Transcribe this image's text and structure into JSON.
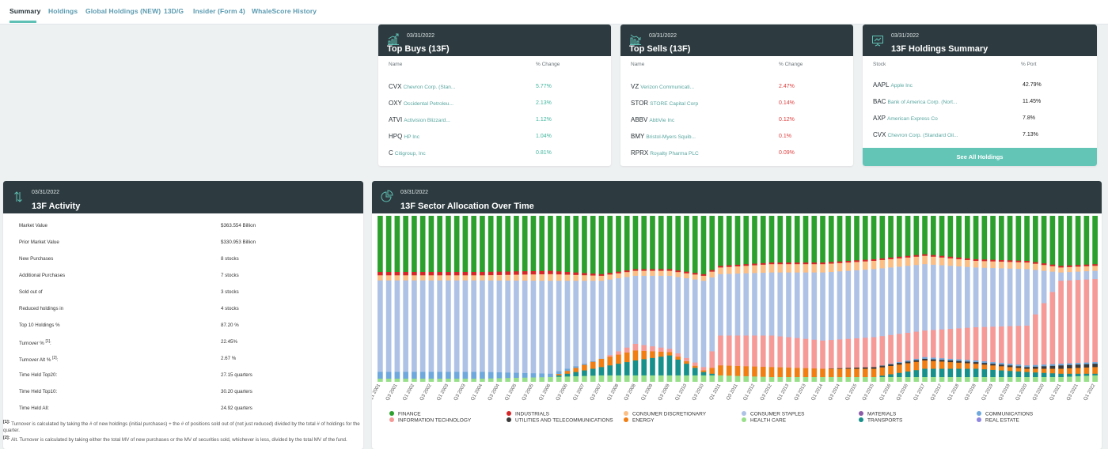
{
  "tabs": [
    "Summary",
    "Holdings",
    "Global Holdings (NEW)",
    "13D/G",
    "Insider (Form 4)",
    "WhaleScore History"
  ],
  "top_buys": {
    "date": "03/31/2022",
    "title": "Top Buys (13F)",
    "col_name": "Name",
    "col_pct": "% Change",
    "rows": [
      {
        "sym": "CVX",
        "name": "Chevron Corp. (Stan...",
        "pct": "5.77%"
      },
      {
        "sym": "OXY",
        "name": "Occidental Petroleu...",
        "pct": "2.13%"
      },
      {
        "sym": "ATVI",
        "name": "Activision Blizzard...",
        "pct": "1.12%"
      },
      {
        "sym": "HPQ",
        "name": "HP Inc",
        "pct": "1.04%"
      },
      {
        "sym": "C",
        "name": "Citigroup, Inc",
        "pct": "0.81%"
      }
    ]
  },
  "top_sells": {
    "date": "03/31/2022",
    "title": "Top Sells (13F)",
    "col_name": "Name",
    "col_pct": "% Change",
    "rows": [
      {
        "sym": "VZ",
        "name": "Verizon Communicati...",
        "pct": "2.47%"
      },
      {
        "sym": "STOR",
        "name": "STORE Capital Corp",
        "pct": "0.14%"
      },
      {
        "sym": "ABBV",
        "name": "AbbVie Inc",
        "pct": "0.12%"
      },
      {
        "sym": "BMY",
        "name": "Bristol-Myers Squib...",
        "pct": "0.1%"
      },
      {
        "sym": "RPRX",
        "name": "Royalty Pharma PLC",
        "pct": "0.09%"
      }
    ]
  },
  "holdings_summary": {
    "date": "03/31/2022",
    "title": "13F Holdings Summary",
    "col_name": "Stock",
    "col_pct": "% Port",
    "rows": [
      {
        "sym": "AAPL",
        "name": "Apple Inc",
        "pct": "42.79%"
      },
      {
        "sym": "BAC",
        "name": "Bank of America Corp. (Nort...",
        "pct": "11.45%"
      },
      {
        "sym": "AXP",
        "name": "American Express Co",
        "pct": "7.8%"
      },
      {
        "sym": "CVX",
        "name": "Chevron Corp. (Standard Oil...",
        "pct": "7.13%"
      }
    ],
    "see_all": "See All Holdings"
  },
  "activity": {
    "date": "03/31/2022",
    "title": "13F Activity",
    "rows": [
      {
        "label": "Market Value",
        "value": "$363.554 Billion"
      },
      {
        "label": "Prior Market Value",
        "value": "$330.953 Billion"
      },
      {
        "label": "New Purchases",
        "value": "8 stocks"
      },
      {
        "label": "Additional Purchases",
        "value": "7 stocks"
      },
      {
        "label": "Sold out of",
        "value": "3 stocks"
      },
      {
        "label": "Reduced holdings in",
        "value": "4 stocks"
      },
      {
        "label": "Top 10 Holdings %",
        "value": "87.20 %"
      },
      {
        "label": "Turnover %",
        "sup": "[1]",
        "suffix": ":",
        "value": "22.45%"
      },
      {
        "label": "Turnover Alt %",
        "sup": "[2]",
        "suffix": ":",
        "value": "2.67 %"
      },
      {
        "label": "Time Held Top20:",
        "value": "27.15 quarters"
      },
      {
        "label": "Time Held Top10:",
        "value": "30.20 quarters"
      },
      {
        "label": "Time Held All:",
        "value": "24.92 quarters"
      }
    ],
    "footnote1_mark": "[1]:",
    "footnote1": "Turnover is calculated by taking the # of new holdings (initial purchases) + the # of positions sold out of (not just reduced) divided by the total # of holdings for the quarter.",
    "footnote2_mark": "[2]:",
    "footnote2": "Alt. Turnover is calculated by taking either the total MV of new purchases or the MV of securities sold, whichever is less, divided by the total MV of the fund."
  },
  "sector": {
    "date": "03/31/2022",
    "title": "13F Sector Allocation Over Time"
  },
  "chart_data": {
    "type": "bar",
    "stacked": true,
    "normalized_percent": true,
    "categories": [
      "Q1 2001",
      "Q2 2001",
      "Q3 2001",
      "Q4 2001",
      "Q1 2002",
      "Q2 2002",
      "Q3 2002",
      "Q4 2002",
      "Q1 2003",
      "Q2 2003",
      "Q3 2003",
      "Q4 2003",
      "Q1 2004",
      "Q2 2004",
      "Q3 2004",
      "Q4 2004",
      "Q1 2005",
      "Q2 2005",
      "Q3 2005",
      "Q4 2005",
      "Q1 2006",
      "Q2 2006",
      "Q3 2006",
      "Q4 2006",
      "Q1 2007",
      "Q2 2007",
      "Q3 2007",
      "Q4 2007",
      "Q1 2008",
      "Q2 2008",
      "Q3 2008",
      "Q4 2008",
      "Q1 2009",
      "Q2 2009",
      "Q3 2009",
      "Q4 2009",
      "Q1 2010",
      "Q2 2010",
      "Q3 2010",
      "Q4 2010",
      "Q1 2011",
      "Q2 2011",
      "Q3 2011",
      "Q4 2011",
      "Q1 2012",
      "Q2 2012",
      "Q3 2012",
      "Q4 2012",
      "Q1 2013",
      "Q2 2013",
      "Q3 2013",
      "Q4 2013",
      "Q1 2014",
      "Q2 2014",
      "Q3 2014",
      "Q4 2014",
      "Q1 2015",
      "Q2 2015",
      "Q3 2015",
      "Q4 2015",
      "Q1 2016",
      "Q2 2016",
      "Q3 2016",
      "Q4 2016",
      "Q1 2017",
      "Q2 2017",
      "Q3 2017",
      "Q4 2017",
      "Q1 2018",
      "Q2 2018",
      "Q3 2018",
      "Q4 2018",
      "Q1 2019",
      "Q2 2019",
      "Q3 2019",
      "Q4 2019",
      "Q1 2020",
      "Q2 2020",
      "Q3 2020",
      "Q4 2020",
      "Q1 2021",
      "Q2 2021",
      "Q3 2021",
      "Q4 2021",
      "Q1 2022"
    ],
    "x_tick_labels": [
      "Q1 2001",
      "Q3 2001",
      "Q1 2002",
      "Q3 2002",
      "Q1 2003",
      "Q3 2003",
      "Q1 2004",
      "Q3 2004",
      "Q1 2005",
      "Q3 2005",
      "Q1 2006",
      "Q3 2006",
      "Q1 2007",
      "Q3 2007",
      "Q1 2008",
      "Q3 2008",
      "Q1 2009",
      "Q3 2009",
      "Q1 2010",
      "Q3 2010",
      "Q1 2011",
      "Q3 2011",
      "Q1 2012",
      "Q3 2012",
      "Q1 2013",
      "Q3 2013",
      "Q1 2014",
      "Q3 2014",
      "Q1 2015",
      "Q3 2015",
      "Q1 2016",
      "Q3 2016",
      "Q1 2017",
      "Q3 2017",
      "Q1 2018",
      "Q3 2018",
      "Q1 2019",
      "Q3 2019",
      "Q1 2020",
      "Q3 2020",
      "Q1 2021",
      "Q3 2021",
      "Q1 2022"
    ],
    "series": [
      {
        "name": "FINANCE",
        "color": "#2ca02c"
      },
      {
        "name": "INFORMATION TECHNOLOGY",
        "color": "#f59a97"
      },
      {
        "name": "INDUSTRIALS",
        "color": "#d62728"
      },
      {
        "name": "UTILITIES AND TELECOMMUNICATIONS",
        "color": "#3a3a3a"
      },
      {
        "name": "CONSUMER DISCRETIONARY",
        "color": "#fbbf85"
      },
      {
        "name": "ENERGY",
        "color": "#f07e13"
      },
      {
        "name": "CONSUMER STAPLES",
        "color": "#aec2e6"
      },
      {
        "name": "HEALTH CARE",
        "color": "#98df8a"
      },
      {
        "name": "MATERIALS",
        "color": "#8c5ca8"
      },
      {
        "name": "TRANSPORTS",
        "color": "#17908c"
      },
      {
        "name": "COMMUNICATIONS",
        "color": "#6ea8dc"
      },
      {
        "name": "REAL ESTATE",
        "color": "#8e86e0"
      }
    ],
    "stack_order": [
      "HEALTH CARE",
      "TRANSPORTS",
      "ENERGY",
      "UTILITIES AND TELECOMMUNICATIONS",
      "COMMUNICATIONS",
      "INFORMATION TECHNOLOGY",
      "CONSUMER STAPLES",
      "CONSUMER DISCRETIONARY",
      "INDUSTRIALS",
      "FINANCE"
    ],
    "keyframes": [
      {
        "q": 0,
        "v": [
          2,
          0,
          0,
          0,
          4,
          0,
          54,
          3,
          2,
          33
        ]
      },
      {
        "q": 12,
        "v": [
          2,
          0,
          0,
          0,
          4,
          0,
          54,
          3,
          2,
          33
        ]
      },
      {
        "q": 20,
        "v": [
          3,
          0,
          0,
          0,
          2,
          0,
          56,
          4,
          2,
          33
        ]
      },
      {
        "q": 26,
        "v": [
          4,
          5,
          5,
          0,
          0,
          0,
          47,
          3,
          1,
          35
        ]
      },
      {
        "q": 30,
        "v": [
          4,
          9,
          6,
          0,
          0,
          4,
          41,
          3,
          1,
          32
        ]
      },
      {
        "q": 34,
        "v": [
          4,
          12,
          2,
          0,
          0,
          2,
          44,
          3,
          1,
          32
        ]
      },
      {
        "q": 38,
        "v": [
          4,
          2,
          1,
          0,
          0,
          2,
          52,
          3,
          1,
          35
        ]
      },
      {
        "q": 40,
        "v": [
          4,
          0,
          6,
          0,
          0,
          18,
          37,
          4,
          1,
          30
        ]
      },
      {
        "q": 46,
        "v": [
          3,
          0,
          6,
          0,
          0,
          19,
          38,
          5,
          1,
          28
        ]
      },
      {
        "q": 52,
        "v": [
          3,
          0,
          5,
          0,
          0,
          17,
          41,
          5,
          1,
          28
        ]
      },
      {
        "q": 58,
        "v": [
          3,
          0,
          5,
          1,
          0,
          18,
          41,
          5,
          1,
          26
        ]
      },
      {
        "q": 64,
        "v": [
          3,
          5,
          5,
          1,
          1,
          16,
          40,
          5,
          1,
          23
        ]
      },
      {
        "q": 70,
        "v": [
          3,
          5,
          3,
          1,
          1,
          20,
          36,
          4,
          1,
          26
        ]
      },
      {
        "q": 76,
        "v": [
          3,
          3,
          2,
          1,
          1,
          24,
          34,
          4,
          1,
          27
        ]
      },
      {
        "q": 80,
        "v": [
          3,
          2,
          3,
          2,
          1,
          50,
          5,
          3,
          1,
          30
        ]
      },
      {
        "q": 84,
        "v": [
          4,
          1,
          4,
          2,
          1,
          50,
          5,
          3,
          1,
          29
        ]
      }
    ]
  }
}
